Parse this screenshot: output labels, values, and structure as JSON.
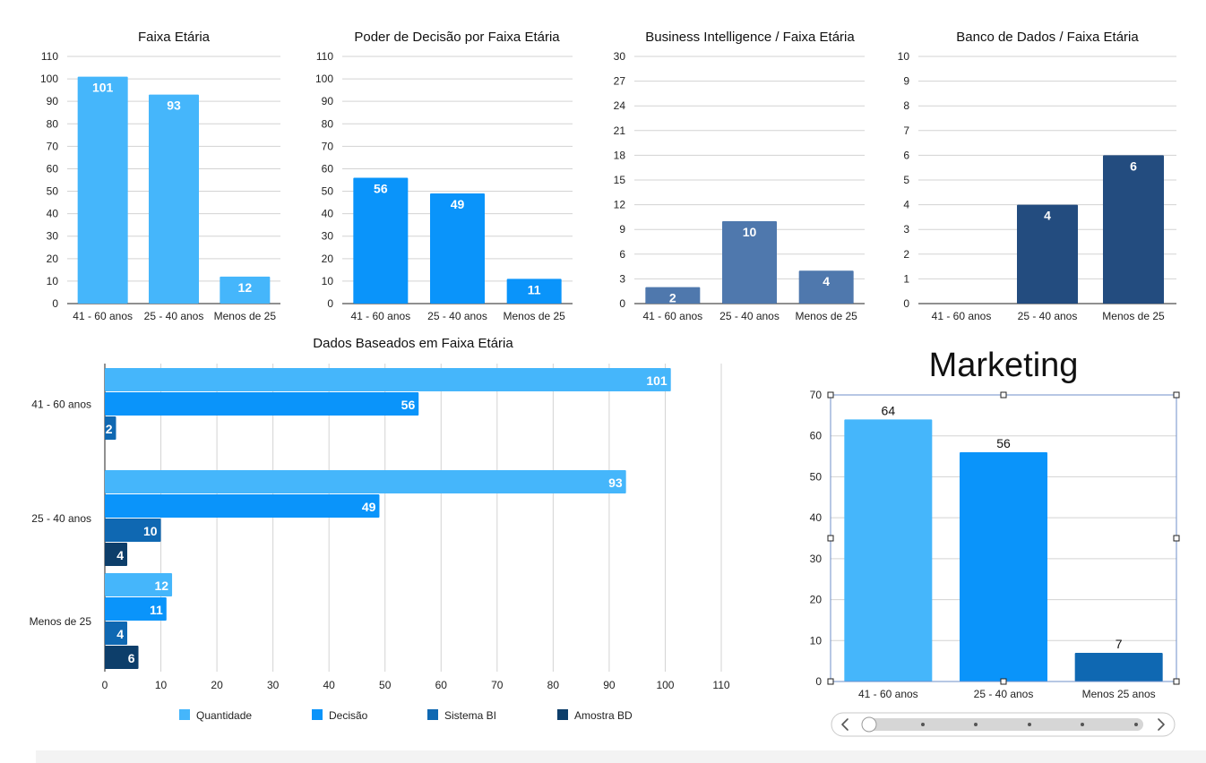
{
  "colors": {
    "quantidade": "#45b6fb",
    "decisao": "#0a94fa",
    "sistema_bi": "#0f68b2",
    "amostra_bd": "#0d3e6a",
    "bi_panel": "#4f78ad",
    "bd_panel": "#234c7f",
    "marketing_third": "#0f68b2",
    "grid": "#d3d3d3"
  },
  "chart_data": [
    {
      "id": "faixa",
      "type": "bar",
      "title": "Faixa Etária",
      "categories": [
        "41 - 60 anos",
        "25 - 40 anos",
        "Menos de 25"
      ],
      "values": [
        101,
        93,
        12
      ],
      "ylim": [
        0,
        110
      ],
      "yticks": [
        0,
        10,
        20,
        30,
        40,
        50,
        60,
        70,
        80,
        90,
        100,
        110
      ],
      "color": "#45b6fb",
      "grid": true
    },
    {
      "id": "decisao",
      "type": "bar",
      "title": "Poder de Decisão por Faixa Etária",
      "categories": [
        "41 - 60 anos",
        "25 - 40 anos",
        "Menos de 25"
      ],
      "values": [
        56,
        49,
        11
      ],
      "ylim": [
        0,
        110
      ],
      "yticks": [
        0,
        10,
        20,
        30,
        40,
        50,
        60,
        70,
        80,
        90,
        100,
        110
      ],
      "color": "#0a94fa",
      "grid": true
    },
    {
      "id": "bi",
      "type": "bar",
      "title": "Business Intelligence / Faixa Etária",
      "categories": [
        "41 - 60 anos",
        "25 - 40 anos",
        "Menos de 25"
      ],
      "values": [
        2,
        10,
        4
      ],
      "ylim": [
        0,
        30
      ],
      "yticks": [
        0,
        3,
        6,
        9,
        12,
        15,
        18,
        21,
        24,
        27,
        30
      ],
      "color": "#4f78ad",
      "grid": true
    },
    {
      "id": "bd",
      "type": "bar",
      "title": "Banco de Dados / Faixa Etária",
      "categories": [
        "41 - 60 anos",
        "25 - 40 anos",
        "Menos de 25"
      ],
      "values": [
        null,
        4,
        6
      ],
      "ylim": [
        0,
        10
      ],
      "yticks": [
        0,
        1,
        2,
        3,
        4,
        5,
        6,
        7,
        8,
        9,
        10
      ],
      "color": "#234c7f",
      "grid": true
    },
    {
      "id": "dados",
      "type": "bar",
      "orientation": "horizontal",
      "title": "Dados Baseados em Faixa Etária",
      "categories": [
        "41 - 60 anos",
        "25 - 40 anos",
        "Menos de 25"
      ],
      "series": [
        {
          "name": "Quantidade",
          "values": [
            101,
            93,
            12
          ],
          "color": "#45b6fb"
        },
        {
          "name": "Decisão",
          "values": [
            56,
            49,
            11
          ],
          "color": "#0a94fa"
        },
        {
          "name": "Sistema BI",
          "values": [
            2,
            10,
            4
          ],
          "color": "#0f68b2"
        },
        {
          "name": "Amostra BD",
          "values": [
            null,
            4,
            6
          ],
          "color": "#0d3e6a"
        }
      ],
      "xlim": [
        0,
        110
      ],
      "xticks": [
        0,
        10,
        20,
        30,
        40,
        50,
        60,
        70,
        80,
        90,
        100,
        110
      ],
      "legend": "bottom",
      "grid": true
    },
    {
      "id": "marketing",
      "type": "bar",
      "title": "Marketing",
      "categories": [
        "41 - 60 anos",
        "25 - 40 anos",
        "Menos 25 anos"
      ],
      "values": [
        64,
        56,
        7
      ],
      "colors": [
        "#45b6fb",
        "#0a94fa",
        "#0f68b2"
      ],
      "ylim": [
        0,
        70
      ],
      "yticks": [
        0,
        10,
        20,
        30,
        40,
        50,
        60,
        70
      ],
      "labels_outside": true,
      "selected": true,
      "grid": true
    }
  ],
  "scroller": {
    "prev_icon": "chevron-left-icon",
    "next_icon": "chevron-right-icon",
    "position": 0
  }
}
